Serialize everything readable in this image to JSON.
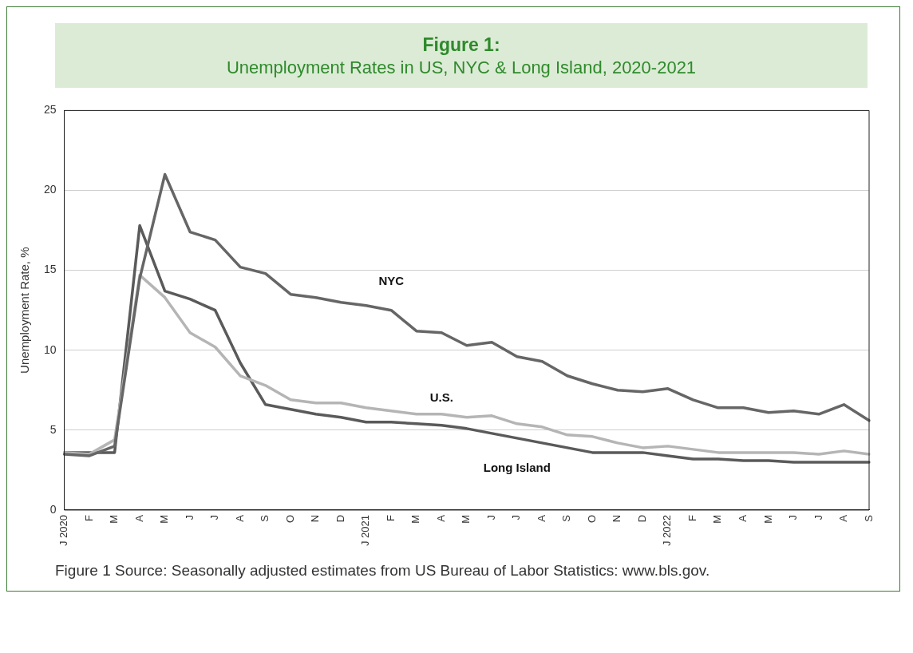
{
  "chart_data": {
    "type": "line",
    "title": "Figure 1:",
    "subtitle": "Unemployment Rates in US, NYC & Long Island, 2020-2021",
    "ylabel": "Unemployment Rate, %",
    "categories": [
      "J 2020",
      "F",
      "M",
      "A",
      "M",
      "J",
      "J",
      "A",
      "S",
      "O",
      "N",
      "D",
      "J 2021",
      "F",
      "M",
      "A",
      "M",
      "J",
      "J",
      "A",
      "S",
      "O",
      "N",
      "D",
      "J 2022",
      "F",
      "M",
      "A",
      "M",
      "J",
      "J",
      "A",
      "S"
    ],
    "series": [
      {
        "name": "NYC",
        "color": "#666666",
        "values": [
          3.5,
          3.4,
          4.0,
          14.5,
          21.0,
          17.4,
          16.9,
          15.2,
          14.8,
          13.5,
          13.3,
          13.0,
          12.8,
          12.5,
          11.2,
          11.1,
          10.3,
          10.5,
          9.6,
          9.3,
          8.4,
          7.9,
          7.5,
          7.4,
          7.6,
          6.9,
          6.4,
          6.4,
          6.1,
          6.2,
          6.0,
          6.6,
          5.6
        ]
      },
      {
        "name": "U.S.",
        "color": "#b5b5b5",
        "values": [
          3.6,
          3.5,
          4.4,
          14.7,
          13.3,
          11.1,
          10.2,
          8.4,
          7.8,
          6.9,
          6.7,
          6.7,
          6.4,
          6.2,
          6.0,
          6.0,
          5.8,
          5.9,
          5.4,
          5.2,
          4.7,
          4.6,
          4.2,
          3.9,
          4.0,
          3.8,
          3.6,
          3.6,
          3.6,
          3.6,
          3.5,
          3.7,
          3.5
        ]
      },
      {
        "name": "Long Island",
        "color": "#5a5a5a",
        "values": [
          3.6,
          3.6,
          3.6,
          17.8,
          13.7,
          13.2,
          12.5,
          9.2,
          6.6,
          6.3,
          6.0,
          5.8,
          5.5,
          5.5,
          5.4,
          5.3,
          5.1,
          4.8,
          4.5,
          4.2,
          3.9,
          3.6,
          3.6,
          3.6,
          3.4,
          3.2,
          3.2,
          3.1,
          3.1,
          3.0,
          3.0,
          3.0,
          3.0
        ]
      }
    ],
    "ylim": [
      0,
      25
    ],
    "yticks": [
      0,
      5,
      10,
      15,
      20,
      25
    ],
    "grid": "y",
    "legend": false,
    "marker": "none",
    "line_style": "solid",
    "annotations": [
      "Figure 1 Source: Seasonally adjusted estimates from US Bureau of Labor Statistics: www.bls.gov."
    ]
  }
}
